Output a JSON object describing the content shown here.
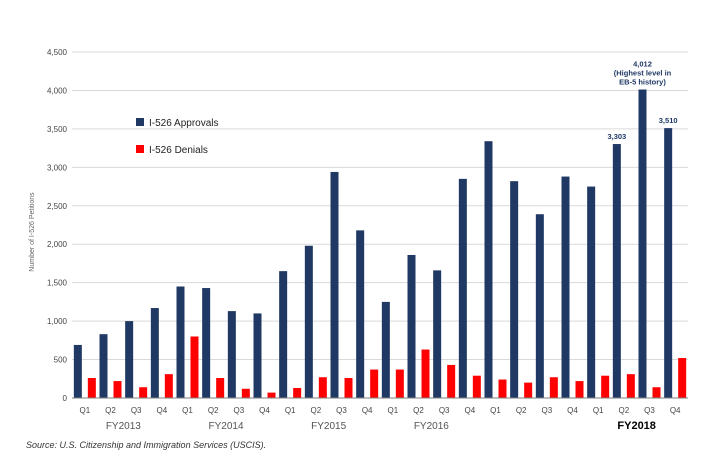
{
  "chart_data": {
    "type": "bar",
    "ylabel": "Number of I-526 Petitions",
    "ylim": [
      0,
      4500
    ],
    "yticks": [
      "0",
      "500",
      "1,000",
      "1,500",
      "2,000",
      "2,500",
      "3,000",
      "3,500",
      "4,000",
      "4,500"
    ],
    "grid": true,
    "legend_position": "top-left",
    "categories": [
      "Q1",
      "Q2",
      "Q3",
      "Q4",
      "Q1",
      "Q2",
      "Q3",
      "Q4",
      "Q1",
      "Q2",
      "Q3",
      "Q4",
      "Q1",
      "Q2",
      "Q3",
      "Q4",
      "Q1",
      "Q2",
      "Q3",
      "Q4",
      "Q1",
      "Q2",
      "Q3",
      "Q4"
    ],
    "fiscal_years": [
      {
        "label": "FY2013",
        "start": 0,
        "end": 3,
        "bold": false
      },
      {
        "label": "FY2014",
        "start": 4,
        "end": 7,
        "bold": false
      },
      {
        "label": "FY2015",
        "start": 8,
        "end": 11,
        "bold": false
      },
      {
        "label": "FY2016",
        "start": 12,
        "end": 15,
        "bold": false
      },
      {
        "label": "FY2018",
        "start": 20,
        "end": 23,
        "bold": true
      }
    ],
    "series": [
      {
        "name": "I-526 Approvals",
        "color": "#1f3864",
        "values": [
          690,
          830,
          1000,
          1170,
          1450,
          1430,
          1130,
          1100,
          1650,
          1980,
          2940,
          2180,
          1250,
          1860,
          1660,
          2850,
          3340,
          2820,
          2390,
          2880,
          2750,
          3303,
          4012,
          3510
        ]
      },
      {
        "name": "I-526 Denials",
        "color": "#ff0000",
        "values": [
          260,
          220,
          140,
          310,
          800,
          260,
          120,
          70,
          130,
          270,
          260,
          370,
          370,
          630,
          430,
          290,
          240,
          200,
          270,
          220,
          290,
          310,
          140,
          520
        ]
      }
    ],
    "annotations": [
      {
        "index": 21,
        "lines": [
          "3,303"
        ]
      },
      {
        "index": 22,
        "lines": [
          "4,012",
          "(Highest level in",
          "EB-5 history)"
        ]
      },
      {
        "index": 23,
        "lines": [
          "3,510"
        ]
      }
    ]
  },
  "source_note": "Source: U.S. Citizenship and Immigration Services (USCIS)."
}
